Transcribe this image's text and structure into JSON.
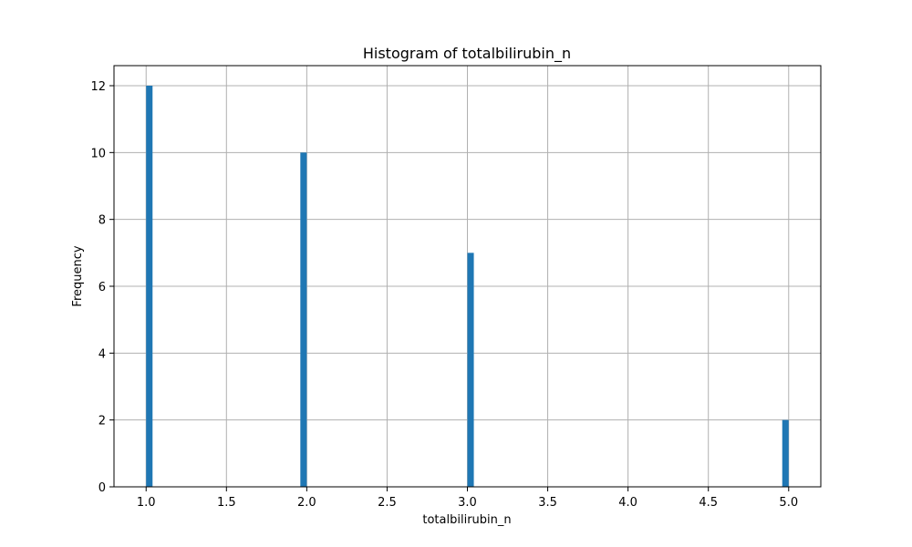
{
  "chart_data": {
    "type": "bar",
    "title": "Histogram of totalbilirubin_n",
    "xlabel": "totalbilirubin_n",
    "ylabel": "Frequency",
    "xlim": [
      0.8,
      5.2
    ],
    "ylim": [
      0,
      12.6
    ],
    "xticks": [
      "1.0",
      "1.5",
      "2.0",
      "2.5",
      "3.0",
      "3.5",
      "4.0",
      "4.5",
      "5.0"
    ],
    "yticks": [
      "0",
      "2",
      "4",
      "6",
      "8",
      "10",
      "12"
    ],
    "bin_width": 0.04,
    "bars": [
      {
        "x0": 1.0,
        "x1": 1.04,
        "value": 12
      },
      {
        "x0": 1.96,
        "x1": 2.0,
        "value": 10
      },
      {
        "x0": 3.0,
        "x1": 3.04,
        "value": 7
      },
      {
        "x0": 4.96,
        "x1": 5.0,
        "value": 2
      }
    ],
    "bar_color": "#1f77b4",
    "grid": true
  }
}
